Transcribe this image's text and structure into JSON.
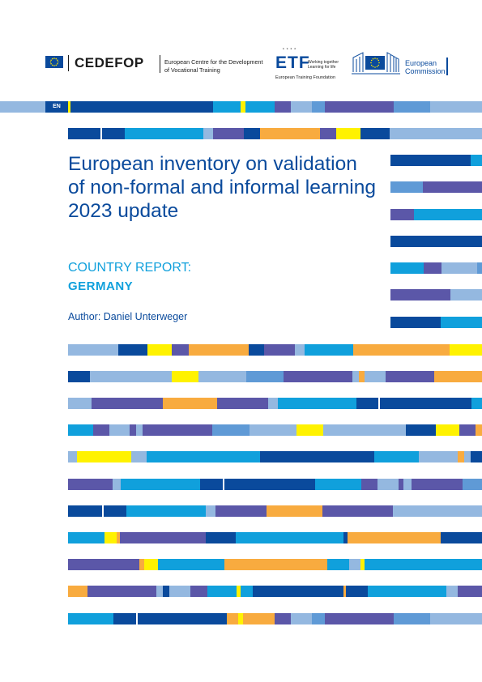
{
  "header": {
    "cedefop": {
      "name": "CEDEFOP",
      "description_line1": "European Centre for the Development",
      "description_line2": "of Vocational Training"
    },
    "etf": {
      "name": "ETF",
      "tagline_line1": "Working together",
      "tagline_line2": "Learning for life",
      "full_name": "European Training Foundation"
    },
    "commission": {
      "line1": "European",
      "line2": "Commission"
    }
  },
  "language_label": "EN",
  "title": "European inventory on validation of non-formal and informal learning 2023 update",
  "subtitle": "COUNTRY REPORT:",
  "country": "GERMANY",
  "author": "Author: Daniel Unterweger",
  "colors": {
    "dark_blue": "#0a4a9c",
    "cyan": "#10a0dc",
    "light_blue": "#94b8e0",
    "mid_blue": "#5f9ad6",
    "purple": "#5b57a8",
    "orange": "#f8ab3f",
    "yellow": "#fff200"
  }
}
